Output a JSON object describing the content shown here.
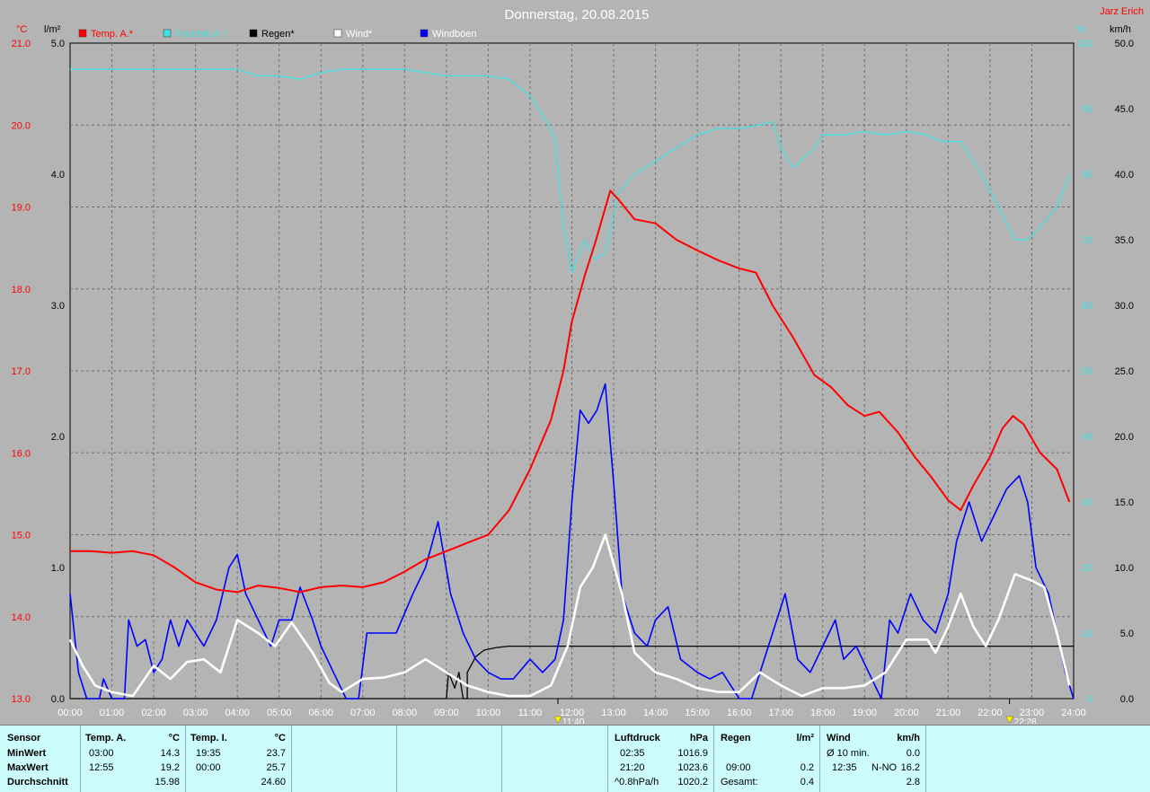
{
  "header": {
    "title": "Donnerstag, 20.08.2015",
    "station": "Jarz Erich"
  },
  "units": {
    "left_temp": "°C",
    "left_rain": "l/m²",
    "right_hum": "%",
    "right_wind": "km/h"
  },
  "legend": [
    {
      "label": "Temp. A.*",
      "color": "#ff0000"
    },
    {
      "label": "Feuchte A.*",
      "color": "#40e0e0"
    },
    {
      "label": "Regen*",
      "color": "#000000"
    },
    {
      "label": "Wind*",
      "color": "#ffffff"
    },
    {
      "label": "Windböen",
      "color": "#0000ff"
    }
  ],
  "chart_data": {
    "type": "line",
    "title": "Donnerstag, 20.08.2015",
    "x_ticks": [
      "00:00",
      "01:00",
      "02:00",
      "03:00",
      "04:00",
      "05:00",
      "06:00",
      "07:00",
      "08:00",
      "09:00",
      "10:00",
      "11:00",
      "12:00",
      "13:00",
      "14:00",
      "15:00",
      "16:00",
      "17:00",
      "18:00",
      "19:00",
      "20:00",
      "21:00",
      "22:00",
      "23:00",
      "24:00"
    ],
    "axes": {
      "temp": {
        "ticks": [
          "13.0",
          "14.0",
          "15.0",
          "16.0",
          "17.0",
          "18.0",
          "19.0",
          "20.0",
          "21.0"
        ],
        "range": [
          13,
          21
        ]
      },
      "rain": {
        "ticks": [
          "0.0",
          "1.0",
          "2.0",
          "3.0",
          "4.0",
          "5.0"
        ],
        "range": [
          0,
          5
        ]
      },
      "humidity": {
        "ticks": [
          "0",
          "10",
          "20",
          "30",
          "40",
          "50",
          "60",
          "70",
          "80",
          "90",
          "100"
        ],
        "range": [
          0,
          100
        ]
      },
      "wind": {
        "ticks": [
          "0.0",
          "5.0",
          "10.0",
          "15.0",
          "20.0",
          "25.0",
          "30.0",
          "35.0",
          "40.0",
          "45.0",
          "50.0"
        ],
        "range": [
          0,
          50
        ]
      }
    },
    "markers": [
      {
        "label": "11:40",
        "hour": 11.667
      },
      {
        "label": "22:28",
        "hour": 22.467
      }
    ],
    "series": [
      {
        "name": "Temp. A.*",
        "axis": "temp",
        "color": "#ff0000",
        "points": [
          [
            0,
            14.8
          ],
          [
            0.5,
            14.8
          ],
          [
            1,
            14.78
          ],
          [
            1.5,
            14.8
          ],
          [
            2,
            14.75
          ],
          [
            2.5,
            14.6
          ],
          [
            3,
            14.42
          ],
          [
            3.5,
            14.33
          ],
          [
            4,
            14.3
          ],
          [
            4.5,
            14.38
          ],
          [
            5,
            14.35
          ],
          [
            5.5,
            14.3
          ],
          [
            6,
            14.36
          ],
          [
            6.5,
            14.38
          ],
          [
            7,
            14.36
          ],
          [
            7.5,
            14.42
          ],
          [
            8,
            14.55
          ],
          [
            8.5,
            14.7
          ],
          [
            9,
            14.8
          ],
          [
            9.5,
            14.9
          ],
          [
            10,
            15.0
          ],
          [
            10.5,
            15.3
          ],
          [
            11,
            15.8
          ],
          [
            11.5,
            16.4
          ],
          [
            11.8,
            17.0
          ],
          [
            12,
            17.6
          ],
          [
            12.3,
            18.15
          ],
          [
            12.55,
            18.55
          ],
          [
            12.92,
            19.2
          ],
          [
            13.1,
            19.1
          ],
          [
            13.5,
            18.85
          ],
          [
            14,
            18.8
          ],
          [
            14.5,
            18.6
          ],
          [
            15,
            18.47
          ],
          [
            15.5,
            18.35
          ],
          [
            16,
            18.25
          ],
          [
            16.4,
            18.2
          ],
          [
            16.8,
            17.8
          ],
          [
            17.3,
            17.4
          ],
          [
            17.8,
            16.95
          ],
          [
            18.2,
            16.8
          ],
          [
            18.6,
            16.58
          ],
          [
            19,
            16.45
          ],
          [
            19.35,
            16.5
          ],
          [
            19.8,
            16.25
          ],
          [
            20.2,
            15.95
          ],
          [
            20.6,
            15.7
          ],
          [
            21,
            15.42
          ],
          [
            21.3,
            15.3
          ],
          [
            21.6,
            15.6
          ],
          [
            22,
            15.95
          ],
          [
            22.3,
            16.3
          ],
          [
            22.55,
            16.45
          ],
          [
            22.8,
            16.35
          ],
          [
            23.2,
            16.0
          ],
          [
            23.6,
            15.8
          ],
          [
            23.9,
            15.4
          ]
        ]
      },
      {
        "name": "Feuchte A.*",
        "axis": "humidity",
        "color": "#40e0e0",
        "points": [
          [
            0,
            96
          ],
          [
            1,
            96
          ],
          [
            2,
            96
          ],
          [
            3,
            96
          ],
          [
            4,
            96
          ],
          [
            4.5,
            95
          ],
          [
            5,
            95
          ],
          [
            5.5,
            94.5
          ],
          [
            6,
            95.5
          ],
          [
            6.5,
            96
          ],
          [
            7,
            96
          ],
          [
            8,
            96
          ],
          [
            9,
            95
          ],
          [
            10,
            95
          ],
          [
            10.5,
            94.5
          ],
          [
            11,
            92
          ],
          [
            11.4,
            88
          ],
          [
            11.6,
            85
          ],
          [
            11.8,
            72
          ],
          [
            12,
            65
          ],
          [
            12.3,
            70
          ],
          [
            12.55,
            67
          ],
          [
            12.8,
            68
          ],
          [
            13.1,
            77
          ],
          [
            13.5,
            80
          ],
          [
            14,
            82
          ],
          [
            14.5,
            84
          ],
          [
            15,
            86
          ],
          [
            15.5,
            87
          ],
          [
            16,
            87
          ],
          [
            16.5,
            87.5
          ],
          [
            16.8,
            88
          ],
          [
            17,
            84
          ],
          [
            17.3,
            81
          ],
          [
            17.8,
            84
          ],
          [
            18,
            86
          ],
          [
            18.5,
            86
          ],
          [
            19,
            86.5
          ],
          [
            19.5,
            86
          ],
          [
            20,
            86.5
          ],
          [
            20.5,
            86
          ],
          [
            20.8,
            85
          ],
          [
            21,
            85
          ],
          [
            21.3,
            85
          ],
          [
            21.8,
            80
          ],
          [
            22.2,
            75
          ],
          [
            22.6,
            70
          ],
          [
            22.9,
            70
          ],
          [
            23.2,
            72
          ],
          [
            23.6,
            75
          ],
          [
            23.9,
            80
          ]
        ]
      },
      {
        "name": "Regen*",
        "axis": "rain",
        "color": "#000000",
        "points": [
          [
            0,
            0
          ],
          [
            9.0,
            0
          ],
          [
            9.05,
            0.2
          ],
          [
            9.2,
            0.08
          ],
          [
            9.3,
            0.2
          ],
          [
            9.4,
            0
          ],
          [
            9.5,
            0
          ],
          [
            9.5,
            0.2
          ],
          [
            9.7,
            0.32
          ],
          [
            9.9,
            0.37
          ],
          [
            10.2,
            0.39
          ],
          [
            10.5,
            0.4
          ],
          [
            11,
            0.4
          ],
          [
            24,
            0.4
          ]
        ]
      },
      {
        "name": "Wind*",
        "axis": "wind",
        "color": "#ffffff",
        "points": [
          [
            0,
            4.5
          ],
          [
            0.3,
            2.5
          ],
          [
            0.6,
            1
          ],
          [
            1,
            0.5
          ],
          [
            1.5,
            0.2
          ],
          [
            2,
            2.5
          ],
          [
            2.4,
            1.5
          ],
          [
            2.8,
            2.8
          ],
          [
            3.2,
            3
          ],
          [
            3.6,
            2
          ],
          [
            4,
            6
          ],
          [
            4.5,
            5
          ],
          [
            4.9,
            4
          ],
          [
            5.3,
            5.8
          ],
          [
            5.8,
            3.5
          ],
          [
            6.2,
            1.2
          ],
          [
            6.5,
            0.5
          ],
          [
            7,
            1.5
          ],
          [
            7.5,
            1.6
          ],
          [
            8,
            2
          ],
          [
            8.5,
            3
          ],
          [
            9,
            2
          ],
          [
            9.5,
            1
          ],
          [
            10,
            0.5
          ],
          [
            10.5,
            0.2
          ],
          [
            11,
            0.2
          ],
          [
            11.5,
            1
          ],
          [
            11.9,
            4
          ],
          [
            12.2,
            8.5
          ],
          [
            12.5,
            10
          ],
          [
            12.8,
            12.5
          ],
          [
            13.2,
            8
          ],
          [
            13.5,
            3.5
          ],
          [
            14,
            2
          ],
          [
            14.5,
            1.5
          ],
          [
            15,
            0.8
          ],
          [
            15.5,
            0.5
          ],
          [
            16,
            0.5
          ],
          [
            16.5,
            2
          ],
          [
            17,
            1
          ],
          [
            17.5,
            0.2
          ],
          [
            18,
            0.8
          ],
          [
            18.5,
            0.8
          ],
          [
            19,
            1
          ],
          [
            19.5,
            2
          ],
          [
            20,
            4.5
          ],
          [
            20.5,
            4.5
          ],
          [
            20.7,
            3.5
          ],
          [
            21,
            5.5
          ],
          [
            21.3,
            8
          ],
          [
            21.6,
            5.5
          ],
          [
            21.9,
            4
          ],
          [
            22.2,
            6
          ],
          [
            22.6,
            9.5
          ],
          [
            23,
            9
          ],
          [
            23.3,
            8.5
          ],
          [
            23.6,
            5
          ],
          [
            23.9,
            1
          ]
        ]
      },
      {
        "name": "Windböen",
        "axis": "wind",
        "color": "#0000ff",
        "points": [
          [
            0,
            8
          ],
          [
            0.2,
            2
          ],
          [
            0.4,
            0
          ],
          [
            0.7,
            0
          ],
          [
            0.8,
            1.5
          ],
          [
            1,
            0
          ],
          [
            1.3,
            0
          ],
          [
            1.4,
            6
          ],
          [
            1.6,
            4
          ],
          [
            1.8,
            4.5
          ],
          [
            2,
            2
          ],
          [
            2.2,
            3
          ],
          [
            2.4,
            6
          ],
          [
            2.6,
            4
          ],
          [
            2.8,
            6
          ],
          [
            3.2,
            4
          ],
          [
            3.5,
            6
          ],
          [
            3.8,
            10
          ],
          [
            4,
            11
          ],
          [
            4.2,
            8
          ],
          [
            4.5,
            6
          ],
          [
            4.8,
            4
          ],
          [
            5,
            6
          ],
          [
            5.3,
            6
          ],
          [
            5.5,
            8.5
          ],
          [
            5.8,
            6
          ],
          [
            6,
            4
          ],
          [
            6.3,
            2
          ],
          [
            6.6,
            0
          ],
          [
            6.9,
            0
          ],
          [
            7.1,
            5
          ],
          [
            7.5,
            5
          ],
          [
            7.8,
            5
          ],
          [
            8.2,
            8
          ],
          [
            8.5,
            10
          ],
          [
            8.8,
            13.5
          ],
          [
            9.1,
            8
          ],
          [
            9.4,
            5
          ],
          [
            9.7,
            3
          ],
          [
            10,
            2
          ],
          [
            10.3,
            1.5
          ],
          [
            10.6,
            1.5
          ],
          [
            11,
            3
          ],
          [
            11.3,
            2
          ],
          [
            11.6,
            3
          ],
          [
            11.8,
            6
          ],
          [
            12,
            15
          ],
          [
            12.2,
            22
          ],
          [
            12.4,
            21
          ],
          [
            12.6,
            22
          ],
          [
            12.8,
            24
          ],
          [
            13,
            16.5
          ],
          [
            13.2,
            8
          ],
          [
            13.5,
            5
          ],
          [
            13.8,
            4
          ],
          [
            14,
            6
          ],
          [
            14.3,
            7
          ],
          [
            14.6,
            3
          ],
          [
            15,
            2
          ],
          [
            15.3,
            1.5
          ],
          [
            15.6,
            2
          ],
          [
            16,
            0
          ],
          [
            16.3,
            0
          ],
          [
            16.6,
            3
          ],
          [
            16.9,
            6
          ],
          [
            17.1,
            8
          ],
          [
            17.4,
            3
          ],
          [
            17.7,
            2
          ],
          [
            18,
            4
          ],
          [
            18.3,
            6
          ],
          [
            18.5,
            3
          ],
          [
            18.8,
            4
          ],
          [
            19.1,
            2
          ],
          [
            19.4,
            0
          ],
          [
            19.6,
            6
          ],
          [
            19.8,
            5
          ],
          [
            20.1,
            8
          ],
          [
            20.4,
            6
          ],
          [
            20.7,
            5
          ],
          [
            21,
            8
          ],
          [
            21.2,
            12
          ],
          [
            21.5,
            15
          ],
          [
            21.8,
            12
          ],
          [
            22.1,
            14
          ],
          [
            22.4,
            16
          ],
          [
            22.7,
            17
          ],
          [
            22.9,
            15
          ],
          [
            23.1,
            10
          ],
          [
            23.4,
            8
          ],
          [
            23.6,
            5
          ],
          [
            23.8,
            2
          ],
          [
            24,
            0
          ]
        ]
      }
    ]
  },
  "stats": {
    "sensor": {
      "title": "Sensor",
      "rows": [
        "MinWert",
        "MaxWert",
        "Durchschnitt"
      ]
    },
    "temp_a": {
      "title": "Temp. A.",
      "unit": "°C",
      "min_time": "03:00",
      "min": "14.3",
      "max_time": "12:55",
      "max": "19.2",
      "avg": "15.98"
    },
    "temp_i": {
      "title": "Temp. I.",
      "unit": "°C",
      "min_time": "19:35",
      "min": "23.7",
      "max_time": "00:00",
      "max": "25.7",
      "avg": "24.60"
    },
    "pressure": {
      "title": "Luftdruck",
      "unit": "hPa",
      "min_time": "02:35",
      "min": "1016.9",
      "max_time": "21:20",
      "max": "1023.6",
      "trend": "^0.8hPa/h",
      "current": "1020.2"
    },
    "rain": {
      "title": "Regen",
      "unit": "l/m²",
      "max_time": "09:00",
      "max": "0.2",
      "total_label": "Gesamt:",
      "total": "0.4"
    },
    "wind": {
      "title": "Wind",
      "unit": "km/h",
      "avg_label": "Ø 10 min.",
      "avg_val": "0.0",
      "max_time": "12:35",
      "max_dir": "N-NO",
      "max": "16.2",
      "avg": "2.8"
    }
  }
}
